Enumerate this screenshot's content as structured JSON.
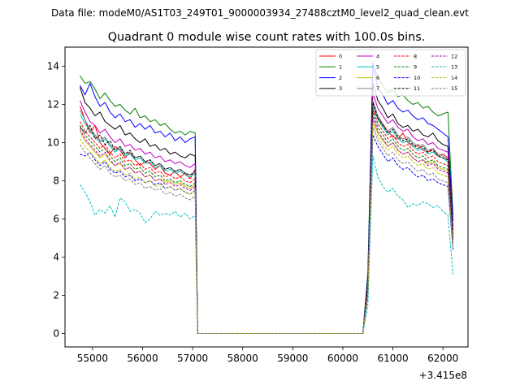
{
  "chart_data": {
    "type": "line",
    "suptitle": "Data file: modeM0/AS1T03_249T01_9000003934_27488cztM0_level2_quad_clean.evt",
    "title": "Quadrant 0 module wise count rates with 100.0s bins.",
    "xlabel": "",
    "ylabel": "",
    "x_offset_label": "+3.415e8",
    "xlim": [
      54450,
      62500
    ],
    "ylim": [
      -0.7,
      15.0
    ],
    "xticks": [
      55000,
      56000,
      57000,
      58000,
      59000,
      60000,
      61000,
      62000
    ],
    "xtick_labels": [
      "55000",
      "56000",
      "57000",
      "58000",
      "59000",
      "60000",
      "61000",
      "62000"
    ],
    "yticks": [
      0,
      2,
      4,
      6,
      8,
      10,
      12,
      14
    ],
    "ytick_labels": [
      "0",
      "2",
      "4",
      "6",
      "8",
      "10",
      "12",
      "14"
    ],
    "grid": false,
    "legend_position": "top-right",
    "legend_columns": 4,
    "bin_width_s": 100.0,
    "gap_interval": [
      57100,
      60400
    ],
    "gap_value": 0,
    "segment1_x_range": [
      54750,
      57050
    ],
    "segment2_x_range": [
      60500,
      62200
    ],
    "series": [
      {
        "name": "0",
        "color": "#ff0000",
        "dash": "solid",
        "seg1": [
          11.9,
          11.2,
          10.5,
          10.9,
          10.0,
          9.7,
          9.4,
          9.8,
          9.6,
          9.2,
          9.5,
          9.1,
          8.8,
          9.0,
          8.9,
          8.6,
          8.8,
          8.4,
          8.3,
          8.5,
          8.2,
          8.4,
          8.1,
          8.6
        ],
        "seg2": [
          2.5,
          11.7,
          11.3,
          10.9,
          10.6,
          10.3,
          10.2,
          10.5,
          10.0,
          9.8,
          9.9,
          9.6,
          9.5,
          9.7,
          9.3,
          9.4,
          9.2,
          5.6
        ]
      },
      {
        "name": "1",
        "color": "#008000",
        "dash": "solid",
        "seg1": [
          13.5,
          13.1,
          13.2,
          12.8,
          12.3,
          12.6,
          12.2,
          11.9,
          12.0,
          11.7,
          11.5,
          11.8,
          11.3,
          11.4,
          11.1,
          11.2,
          10.9,
          11.0,
          10.7,
          10.5,
          10.6,
          10.4,
          10.6,
          10.5
        ],
        "seg2": [
          3.2,
          14.1,
          13.4,
          13.0,
          12.6,
          12.8,
          12.4,
          12.5,
          12.2,
          12.0,
          12.1,
          11.8,
          11.9,
          11.6,
          11.4,
          11.5,
          11.6,
          6.2
        ]
      },
      {
        "name": "2",
        "color": "#0000ff",
        "dash": "solid",
        "seg1": [
          13.0,
          12.5,
          13.1,
          12.4,
          11.9,
          12.1,
          11.6,
          11.3,
          11.5,
          11.1,
          11.2,
          10.8,
          11.0,
          10.7,
          10.9,
          10.5,
          10.6,
          10.3,
          10.5,
          10.1,
          10.3,
          10.0,
          10.2,
          10.3
        ],
        "seg2": [
          3.0,
          14.2,
          12.8,
          12.5,
          12.0,
          12.2,
          11.8,
          11.6,
          11.7,
          11.4,
          11.2,
          11.3,
          11.0,
          10.9,
          10.7,
          10.5,
          10.3,
          5.9
        ]
      },
      {
        "name": "3",
        "color": "#000000",
        "dash": "solid",
        "seg1": [
          12.9,
          12.1,
          11.8,
          11.4,
          11.6,
          11.1,
          10.9,
          10.7,
          10.9,
          10.4,
          10.5,
          10.2,
          10.0,
          10.2,
          9.8,
          9.9,
          9.6,
          9.7,
          9.4,
          9.5,
          9.3,
          9.2,
          9.4,
          9.3
        ],
        "seg2": [
          2.8,
          13.1,
          12.2,
          11.8,
          11.3,
          11.5,
          11.0,
          10.8,
          10.9,
          10.6,
          10.7,
          10.4,
          10.3,
          10.5,
          10.1,
          9.9,
          9.8,
          5.4
        ]
      },
      {
        "name": "4",
        "color": "#bf00bf",
        "dash": "solid",
        "seg1": [
          12.2,
          11.6,
          11.1,
          10.9,
          10.5,
          10.7,
          10.3,
          10.0,
          10.2,
          9.8,
          9.9,
          9.6,
          9.7,
          9.4,
          9.5,
          9.2,
          9.3,
          9.0,
          9.1,
          8.9,
          9.0,
          8.8,
          8.7,
          8.9
        ],
        "seg2": [
          2.6,
          12.6,
          11.8,
          11.4,
          11.0,
          11.2,
          10.8,
          10.6,
          10.7,
          10.3,
          10.1,
          10.2,
          9.9,
          10.0,
          9.7,
          9.6,
          9.5,
          5.2
        ]
      },
      {
        "name": "5",
        "color": "#00bfbf",
        "dash": "solid",
        "seg1": [
          11.5,
          11.0,
          10.6,
          10.3,
          10.0,
          10.2,
          9.8,
          9.5,
          9.7,
          9.3,
          9.4,
          9.1,
          9.2,
          8.9,
          9.0,
          8.7,
          8.8,
          8.5,
          8.6,
          8.4,
          8.5,
          8.3,
          8.2,
          8.4
        ],
        "seg2": [
          2.4,
          12.0,
          11.2,
          10.8,
          10.4,
          10.6,
          10.2,
          10.0,
          10.1,
          9.8,
          9.6,
          9.7,
          9.4,
          9.5,
          9.3,
          9.2,
          9.0,
          5.0
        ]
      },
      {
        "name": "6",
        "color": "#bfbf00",
        "dash": "solid",
        "seg1": [
          10.6,
          10.1,
          9.8,
          9.5,
          9.2,
          9.4,
          9.0,
          8.8,
          8.9,
          8.6,
          8.7,
          8.4,
          8.5,
          8.2,
          8.3,
          8.0,
          8.1,
          7.9,
          8.0,
          7.8,
          7.9,
          7.7,
          7.6,
          7.8
        ],
        "seg2": [
          2.2,
          11.2,
          10.5,
          10.1,
          9.8,
          10.0,
          9.6,
          9.4,
          9.5,
          9.2,
          9.0,
          9.1,
          8.9,
          9.0,
          8.7,
          8.6,
          8.5,
          4.8
        ]
      },
      {
        "name": "7",
        "color": "#808080",
        "dash": "solid",
        "seg1": [
          11.7,
          11.2,
          10.7,
          10.4,
          10.1,
          10.3,
          9.9,
          9.6,
          9.8,
          9.4,
          9.5,
          9.2,
          9.3,
          9.0,
          9.1,
          8.8,
          8.9,
          8.6,
          8.7,
          8.5,
          8.6,
          8.4,
          8.3,
          8.5
        ],
        "seg2": [
          2.5,
          12.2,
          11.4,
          11.0,
          10.6,
          10.8,
          10.4,
          10.2,
          10.3,
          10.0,
          9.8,
          9.9,
          9.6,
          9.7,
          9.4,
          9.3,
          9.1,
          5.1
        ]
      },
      {
        "name": "8",
        "color": "#ff0000",
        "dash": "dashed",
        "seg1": [
          11.1,
          10.6,
          10.3,
          10.0,
          9.7,
          9.9,
          9.5,
          9.2,
          9.4,
          9.0,
          9.1,
          8.8,
          8.9,
          8.6,
          8.7,
          8.4,
          8.5,
          8.2,
          8.3,
          8.1,
          8.2,
          8.0,
          7.9,
          8.1
        ],
        "seg2": [
          2.3,
          11.8,
          11.0,
          10.6,
          10.2,
          10.4,
          10.0,
          9.8,
          9.9,
          9.6,
          9.4,
          9.5,
          9.2,
          9.3,
          9.0,
          8.9,
          8.8,
          4.9
        ]
      },
      {
        "name": "9",
        "color": "#008000",
        "dash": "dashed",
        "seg1": [
          10.9,
          10.4,
          10.1,
          9.8,
          9.5,
          9.7,
          9.3,
          9.0,
          9.2,
          8.8,
          8.9,
          8.6,
          8.7,
          8.4,
          8.5,
          8.2,
          8.3,
          8.0,
          8.1,
          7.9,
          8.0,
          7.8,
          7.7,
          7.9
        ],
        "seg2": [
          2.2,
          11.6,
          10.8,
          10.4,
          10.0,
          10.2,
          9.8,
          9.6,
          9.7,
          9.4,
          9.2,
          9.3,
          9.0,
          9.1,
          8.8,
          8.7,
          8.6,
          4.8
        ]
      },
      {
        "name": "10",
        "color": "#0000ff",
        "dash": "dashed",
        "seg1": [
          9.4,
          9.3,
          9.5,
          9.1,
          8.8,
          9.0,
          8.6,
          8.4,
          8.5,
          8.2,
          8.3,
          8.0,
          8.1,
          7.9,
          8.0,
          7.8,
          7.9,
          7.6,
          7.7,
          7.5,
          7.6,
          7.4,
          7.3,
          7.5
        ],
        "seg2": [
          2.0,
          10.4,
          9.8,
          9.4,
          9.0,
          9.2,
          8.8,
          8.6,
          8.7,
          8.4,
          8.2,
          8.3,
          8.0,
          8.1,
          7.9,
          7.8,
          7.7,
          4.4
        ]
      },
      {
        "name": "11",
        "color": "#000000",
        "dash": "dashed",
        "seg1": [
          10.8,
          10.5,
          10.9,
          10.2,
          10.4,
          9.9,
          10.1,
          9.6,
          9.8,
          9.4,
          9.6,
          9.2,
          9.3,
          9.0,
          9.1,
          8.8,
          8.9,
          8.6,
          8.7,
          8.5,
          8.6,
          8.4,
          8.3,
          8.5
        ],
        "seg2": [
          2.4,
          12.1,
          11.3,
          10.9,
          10.5,
          10.7,
          10.3,
          10.1,
          10.2,
          9.9,
          9.7,
          9.8,
          9.5,
          9.6,
          9.3,
          9.2,
          9.1,
          5.0
        ]
      },
      {
        "name": "12",
        "color": "#bf00bf",
        "dash": "dashed",
        "seg1": [
          10.7,
          10.2,
          9.9,
          9.6,
          9.3,
          9.5,
          9.1,
          8.8,
          9.0,
          8.6,
          8.7,
          8.4,
          8.5,
          8.2,
          8.3,
          8.0,
          8.1,
          7.8,
          7.9,
          7.7,
          7.8,
          7.6,
          7.5,
          7.7
        ],
        "seg2": [
          2.1,
          11.4,
          10.6,
          10.2,
          9.8,
          10.0,
          9.6,
          9.4,
          9.5,
          9.2,
          9.0,
          9.1,
          8.8,
          8.9,
          8.6,
          8.5,
          8.4,
          4.7
        ]
      },
      {
        "name": "13",
        "color": "#00bfbf",
        "dash": "dashed",
        "seg1": [
          7.8,
          7.4,
          6.9,
          6.2,
          6.5,
          6.3,
          6.7,
          6.1,
          7.1,
          6.9,
          6.4,
          6.5,
          6.3,
          5.8,
          6.0,
          6.4,
          6.2,
          6.3,
          6.2,
          6.4,
          6.1,
          6.3,
          6.0,
          6.2
        ],
        "seg2": [
          1.5,
          9.3,
          8.2,
          7.7,
          7.4,
          7.6,
          7.2,
          7.0,
          6.6,
          6.8,
          6.7,
          6.9,
          6.8,
          6.6,
          6.7,
          6.4,
          6.2,
          3.1
        ]
      },
      {
        "name": "14",
        "color": "#bfbf00",
        "dash": "dashed",
        "seg1": [
          10.2,
          9.8,
          9.5,
          9.2,
          8.9,
          9.1,
          8.7,
          8.5,
          8.6,
          8.3,
          8.4,
          8.1,
          8.2,
          7.9,
          8.0,
          7.7,
          7.8,
          7.6,
          7.7,
          7.5,
          7.6,
          7.4,
          7.3,
          7.5
        ],
        "seg2": [
          2.1,
          11.0,
          10.3,
          9.9,
          9.6,
          9.8,
          9.4,
          9.2,
          9.3,
          9.0,
          8.8,
          8.9,
          8.6,
          8.7,
          8.4,
          8.3,
          8.2,
          4.6
        ]
      },
      {
        "name": "15",
        "color": "#808080",
        "dash": "dashed",
        "seg1": [
          9.9,
          9.5,
          9.2,
          8.9,
          8.6,
          8.8,
          8.4,
          8.2,
          8.3,
          8.0,
          8.1,
          7.8,
          7.9,
          7.6,
          7.7,
          7.5,
          7.6,
          7.3,
          7.4,
          7.2,
          7.3,
          7.1,
          7.0,
          7.2
        ],
        "seg2": [
          2.0,
          10.8,
          10.1,
          9.7,
          9.3,
          9.5,
          9.1,
          8.9,
          9.0,
          8.7,
          8.5,
          8.6,
          8.3,
          8.4,
          8.1,
          8.0,
          7.9,
          4.4
        ]
      }
    ]
  }
}
